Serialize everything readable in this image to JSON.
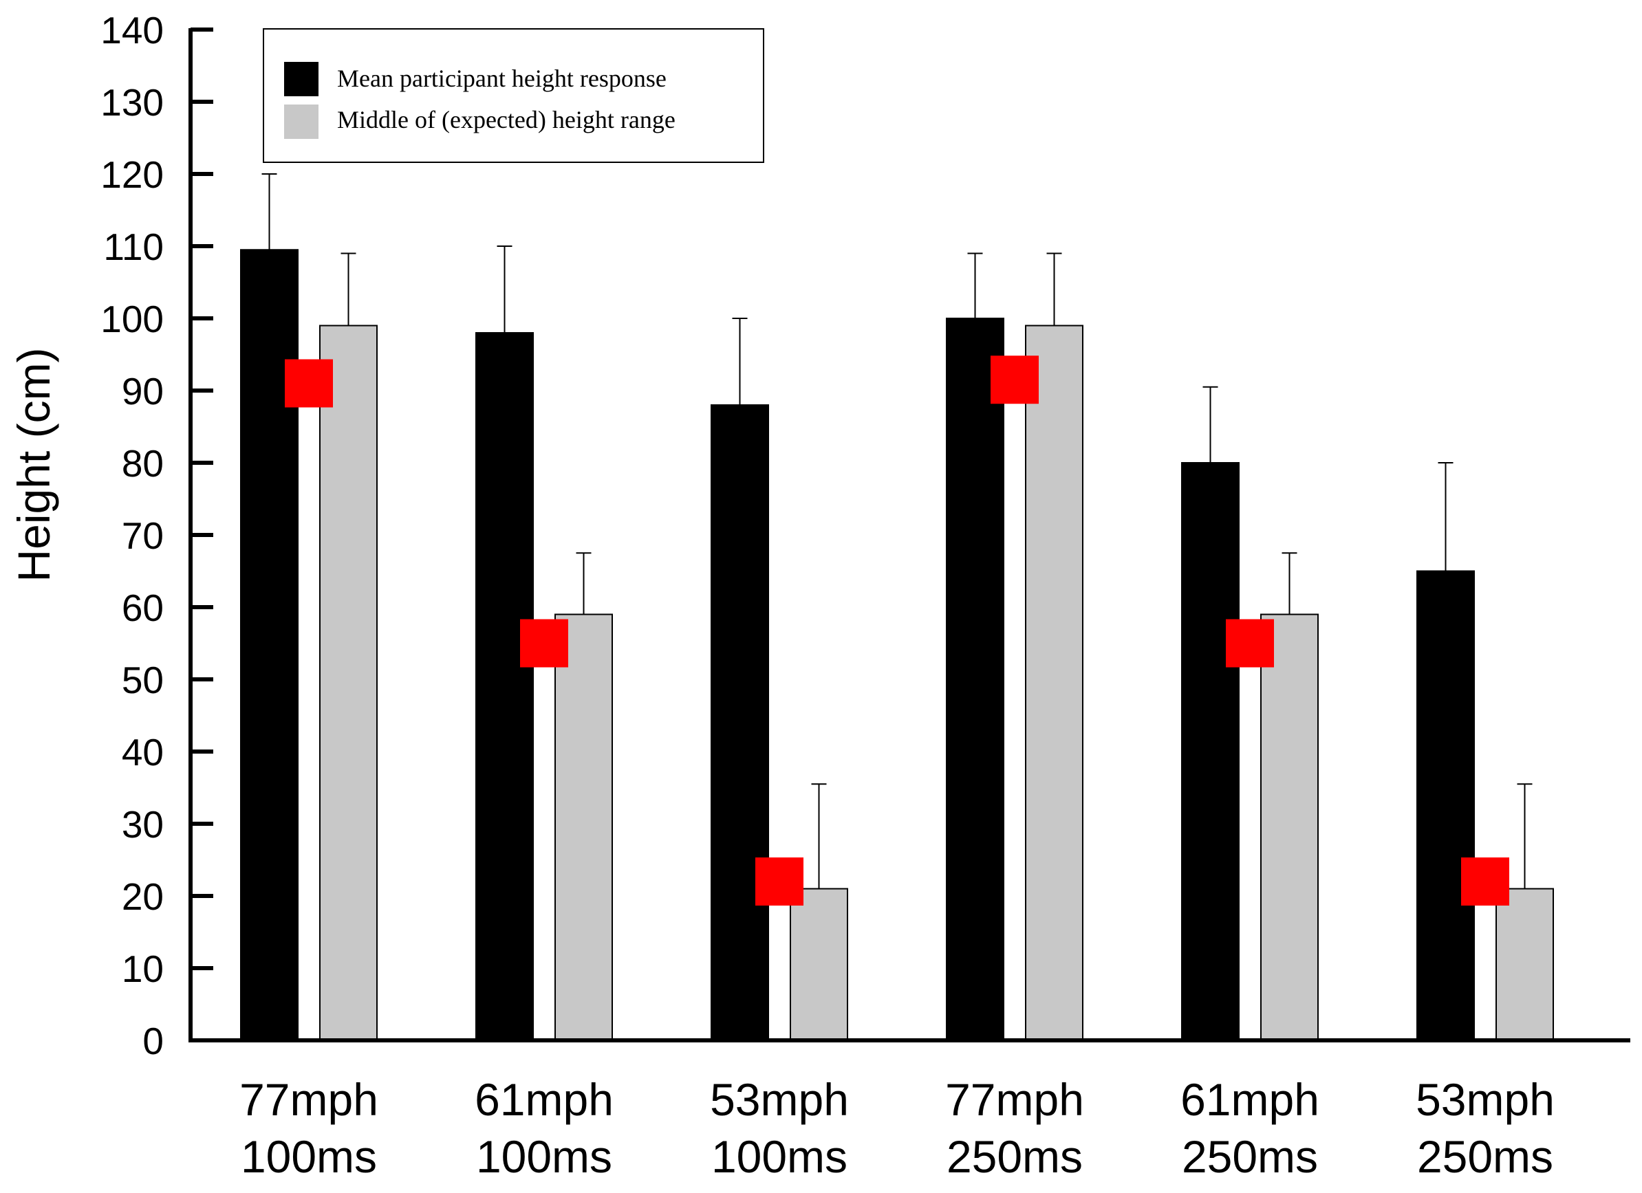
{
  "chart_data": {
    "type": "bar",
    "title": "",
    "xlabel": "",
    "ylabel": "Height (cm)",
    "ylim": [
      0,
      140
    ],
    "yticks": [
      0,
      10,
      20,
      30,
      40,
      50,
      60,
      70,
      80,
      90,
      100,
      110,
      120,
      130,
      140
    ],
    "grid": false,
    "legend_position": "top-left",
    "categories": [
      [
        "77mph",
        "100ms"
      ],
      [
        "61mph",
        "100ms"
      ],
      [
        "53mph",
        "100ms"
      ],
      [
        "77mph",
        "250ms"
      ],
      [
        "61mph",
        "250ms"
      ],
      [
        "53mph",
        "250ms"
      ]
    ],
    "series": [
      {
        "name": "Mean participant height response",
        "color": "#000000",
        "values": [
          109.5,
          98,
          88,
          100,
          80,
          65
        ],
        "error_upper": [
          120,
          110,
          100,
          109,
          90.5,
          80
        ]
      },
      {
        "name": "Middle of (expected) height range",
        "color": "#c8c8c8",
        "values": [
          99,
          59,
          21,
          99,
          59,
          21
        ],
        "error_upper": [
          109,
          67.5,
          35.5,
          109,
          67.5,
          35.5
        ]
      }
    ],
    "markers": {
      "color": "#ff0000",
      "shape": "square",
      "values": [
        91,
        55,
        22,
        91.5,
        55,
        22
      ]
    }
  }
}
